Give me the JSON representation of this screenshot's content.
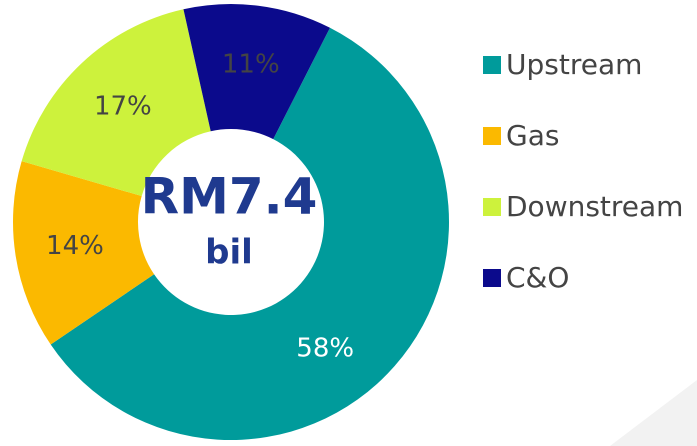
{
  "chart_data": {
    "type": "donut",
    "categories": [
      "Upstream",
      "Gas",
      "Downstream",
      "C&O"
    ],
    "values": [
      58,
      14,
      17,
      11
    ],
    "value_labels": [
      "58%",
      "14%",
      "17%",
      "11%"
    ],
    "colors": [
      "#009b9b",
      "#fbb900",
      "#cdf23c",
      "#0b0a8c"
    ],
    "center_text": "RM7.4",
    "center_subtext": "bil",
    "legend": "right"
  }
}
